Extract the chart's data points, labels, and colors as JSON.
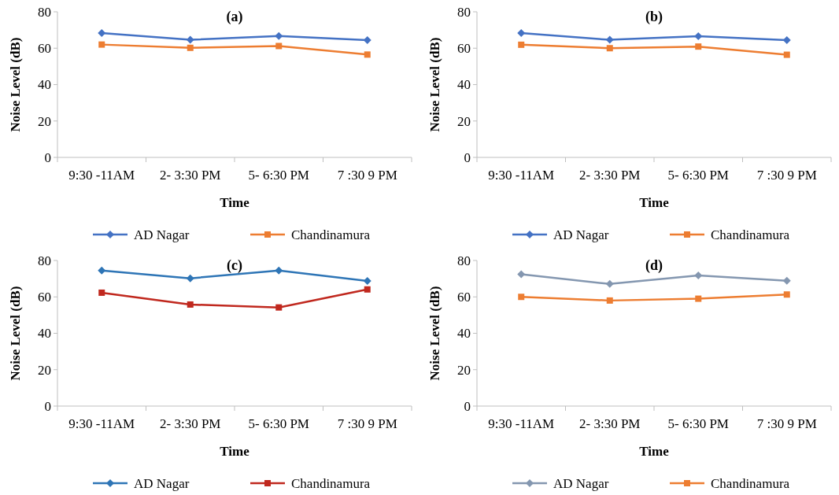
{
  "chart_data": [
    {
      "type": "line",
      "title": "(a)",
      "xlabel": "Time",
      "ylabel": "Noise Level (dB)",
      "categories": [
        "9:30 -11AM",
        "2- 3:30 PM",
        "5- 6:30 PM",
        "7 :30 9 PM"
      ],
      "ylim": [
        0,
        80
      ],
      "yticks": [
        0,
        20,
        40,
        60,
        80
      ],
      "grid": false,
      "legend": "bottom",
      "series": [
        {
          "name": "AD Nagar",
          "color": "#4472c4",
          "marker": "diamond",
          "values": [
            68.3,
            64.6,
            66.7,
            64.4
          ]
        },
        {
          "name": "Chandinamura",
          "color": "#ed7d31",
          "marker": "square",
          "values": [
            62.0,
            60.2,
            61.2,
            56.5
          ]
        }
      ]
    },
    {
      "type": "line",
      "title": "(b)",
      "xlabel": "Time",
      "ylabel": "Noise Level (dB)",
      "categories": [
        "9:30 -11AM",
        "2- 3:30 PM",
        "5- 6:30 PM",
        "7 :30 9 PM"
      ],
      "ylim": [
        0,
        80
      ],
      "yticks": [
        0,
        20,
        40,
        60,
        80
      ],
      "grid": false,
      "legend": "bottom",
      "series": [
        {
          "name": "AD Nagar",
          "color": "#4472c4",
          "marker": "diamond",
          "values": [
            68.3,
            64.6,
            66.6,
            64.4
          ]
        },
        {
          "name": "Chandinamura",
          "color": "#ed7d31",
          "marker": "square",
          "values": [
            61.9,
            60.0,
            60.9,
            56.4
          ]
        }
      ]
    },
    {
      "type": "line",
      "title": "(c)",
      "xlabel": "Time",
      "ylabel": "Noise Level (dB)",
      "categories": [
        "9:30 -11AM",
        "2- 3:30 PM",
        "5- 6:30 PM",
        "7 :30 9 PM"
      ],
      "ylim": [
        0,
        80
      ],
      "yticks": [
        0,
        20,
        40,
        60,
        80
      ],
      "grid": false,
      "legend": "bottom",
      "series": [
        {
          "name": "AD Nagar",
          "color": "#2e75b6",
          "marker": "diamond",
          "values": [
            74.5,
            70.2,
            74.5,
            68.8
          ]
        },
        {
          "name": "Chandinamura",
          "color": "#c0281e",
          "marker": "square",
          "values": [
            62.3,
            55.8,
            54.2,
            64.1
          ]
        }
      ]
    },
    {
      "type": "line",
      "title": "(d)",
      "xlabel": "Time",
      "ylabel": "Noise Level (dB)",
      "categories": [
        "9:30 -11AM",
        "2- 3:30 PM",
        "5- 6:30 PM",
        "7 :30 9 PM"
      ],
      "ylim": [
        0,
        80
      ],
      "yticks": [
        0,
        20,
        40,
        60,
        80
      ],
      "grid": false,
      "legend": "bottom",
      "series": [
        {
          "name": "AD Nagar",
          "color": "#8497b0",
          "marker": "diamond",
          "values": [
            72.4,
            67.1,
            71.8,
            68.9
          ]
        },
        {
          "name": "Chandinamura",
          "color": "#ed7d31",
          "marker": "square",
          "values": [
            60.0,
            58.0,
            59.0,
            61.3
          ]
        }
      ]
    }
  ]
}
